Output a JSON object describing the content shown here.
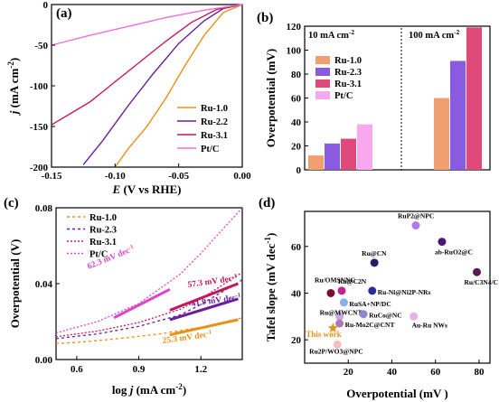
{
  "chart_data": [
    {
      "panel": "(a)",
      "type": "line",
      "xlabel": "E (V vs RHE)",
      "ylabel": "j (mA cm-2)",
      "xlim": [
        -0.15,
        0.0
      ],
      "ylim": [
        -200,
        0
      ],
      "xticks": [
        "-0.15",
        "-0.10",
        "-0.05",
        "0.00"
      ],
      "yticks": [
        "-200",
        "-150",
        "-100",
        "-50",
        "0"
      ],
      "legend_position": "bottom-right",
      "series": [
        {
          "name": "Ru-1.0",
          "color": "#e8901a",
          "x": [
            0,
            -0.015,
            -0.03,
            -0.045,
            -0.06,
            -0.075,
            -0.09,
            -0.1
          ],
          "y": [
            0,
            -10,
            -38,
            -75,
            -115,
            -150,
            -178,
            -200
          ]
        },
        {
          "name": "Ru-2.2",
          "color": "#6a1e9a",
          "x": [
            0,
            -0.015,
            -0.03,
            -0.05,
            -0.07,
            -0.09,
            -0.11,
            -0.125
          ],
          "y": [
            0,
            -5,
            -20,
            -48,
            -85,
            -125,
            -168,
            -197
          ]
        },
        {
          "name": "Ru-3.1",
          "color": "#c2185b",
          "x": [
            0,
            -0.02,
            -0.04,
            -0.06,
            -0.08,
            -0.1,
            -0.12,
            -0.15
          ],
          "y": [
            0,
            -6,
            -22,
            -45,
            -70,
            -95,
            -120,
            -148
          ]
        },
        {
          "name": "Pt/C",
          "color": "#f06ce0",
          "x": [
            0,
            -0.03,
            -0.06,
            -0.09,
            -0.12,
            -0.15
          ],
          "y": [
            0,
            -7,
            -16,
            -27,
            -38,
            -50
          ]
        }
      ]
    },
    {
      "panel": "(b)",
      "type": "bar",
      "ylabel": "Overpotential (mV)",
      "ylim": [
        0,
        120
      ],
      "yticks": [
        "0",
        "20",
        "40",
        "60",
        "80",
        "100",
        "120"
      ],
      "group_labels": [
        "10 mA cm-2",
        "100 mA cm-2"
      ],
      "legend_position": "top-left",
      "series": [
        {
          "name": "Ru-1.0",
          "color": "#f0a070",
          "values": [
            12,
            60
          ]
        },
        {
          "name": "Ru-2.3",
          "color": "#8a5ae0",
          "values": [
            22,
            91
          ]
        },
        {
          "name": "Ru-3.1",
          "color": "#e04a7a",
          "values": [
            26,
            119
          ]
        },
        {
          "name": "Pt/C",
          "color": "#f7a8ef",
          "values": [
            38,
            null
          ]
        }
      ]
    },
    {
      "panel": "(c)",
      "type": "line",
      "xlabel": "log j (mA cm-2)",
      "ylabel": "Overpotential (V)",
      "xlim": [
        0.5,
        1.4
      ],
      "ylim": [
        0,
        0.08
      ],
      "xticks": [
        "0.6",
        "0.9",
        "1.2"
      ],
      "yticks": [
        "0.00",
        "0.04",
        "0.08"
      ],
      "legend_position": "top-left",
      "series": [
        {
          "name": "Ru-1.0",
          "color": "#e8901a",
          "slope_label": "25.3 mV dec-1",
          "x": [
            0.5,
            0.6,
            0.8,
            1.0,
            1.2,
            1.4
          ],
          "y": [
            0.0085,
            0.009,
            0.011,
            0.0135,
            0.017,
            0.022
          ]
        },
        {
          "name": "Ru-2.3",
          "color": "#6a1e9a",
          "slope_label": "41.9 mV dec-1",
          "x": [
            0.5,
            0.7,
            0.9,
            1.1,
            1.2,
            1.4
          ],
          "y": [
            0.011,
            0.0135,
            0.0175,
            0.0235,
            0.029,
            0.042
          ]
        },
        {
          "name": "Ru-3.1",
          "color": "#c2185b",
          "slope_label": "57.3 mV dec-1",
          "x": [
            0.5,
            0.7,
            0.9,
            1.1,
            1.2,
            1.4
          ],
          "y": [
            0.012,
            0.015,
            0.0195,
            0.0265,
            0.032,
            0.046
          ]
        },
        {
          "name": "Pt/C",
          "color": "#dd44c8",
          "slope_label": "62.3 mV dec-1",
          "x": [
            0.5,
            0.7,
            0.9,
            1.1,
            1.2,
            1.4
          ],
          "y": [
            0.014,
            0.02,
            0.0295,
            0.045,
            0.056,
            0.08
          ]
        }
      ]
    },
    {
      "panel": "(d)",
      "type": "scatter",
      "xlabel": "Overpotential (mV )",
      "ylabel": "Tafel slope (mV dec-1)",
      "xlim": [
        0,
        85
      ],
      "ylim": [
        10,
        75
      ],
      "xticks": [
        "20",
        "40",
        "60",
        "80"
      ],
      "yticks": [
        "20",
        "40",
        "60"
      ],
      "points": [
        {
          "label": "RuP2@NPC",
          "x": 51,
          "y": 69,
          "color": "#b07ae8"
        },
        {
          "label": "ab-RuO2@C",
          "x": 63,
          "y": 62,
          "color": "#4a1a70"
        },
        {
          "label": "Ru@CN",
          "x": 32,
          "y": 53,
          "color": "#2a1a6a"
        },
        {
          "label": "Ru/C3N4/C",
          "x": 79,
          "y": 49,
          "color": "#5a1a5a"
        },
        {
          "label": "Ru/OMSNNC",
          "x": 12,
          "y": 40,
          "color": "#7a1030"
        },
        {
          "label": "Ru@C2N",
          "x": 17,
          "y": 41,
          "color": "#c02090"
        },
        {
          "label": "Ru-Ni@Ni2P-NRs",
          "x": 31,
          "y": 41,
          "color": "#2a2aa0"
        },
        {
          "label": "RuSA+NP/DC",
          "x": 18,
          "y": 36,
          "color": "#8ab0e8"
        },
        {
          "label": "Ru@MWCNT",
          "x": 16,
          "y": 30,
          "color": "#c8a8e8"
        },
        {
          "label": "RuCo@NC",
          "x": 27,
          "y": 31,
          "color": "#8a8ac8"
        },
        {
          "label": "Au-Ru NWs",
          "x": 50,
          "y": 30,
          "color": "#e8b0e8"
        },
        {
          "label": "Ru-Mo2C@CNT",
          "x": 16,
          "y": 27,
          "color": "#b07ab0"
        },
        {
          "label": "This work",
          "x": 13,
          "y": 25,
          "color": "#e8901a",
          "marker": "star",
          "highlight": true
        },
        {
          "label": "Ru2P/WO3@NPC",
          "x": 15,
          "y": 18,
          "color": "#f0c0c0"
        }
      ]
    }
  ],
  "labels": {
    "a": "(a)",
    "b": "(b)",
    "c": "(c)",
    "d": "(d)",
    "b_group1": "10 mA cm",
    "b_group2": "100 mA cm",
    "this_work": "This work"
  }
}
